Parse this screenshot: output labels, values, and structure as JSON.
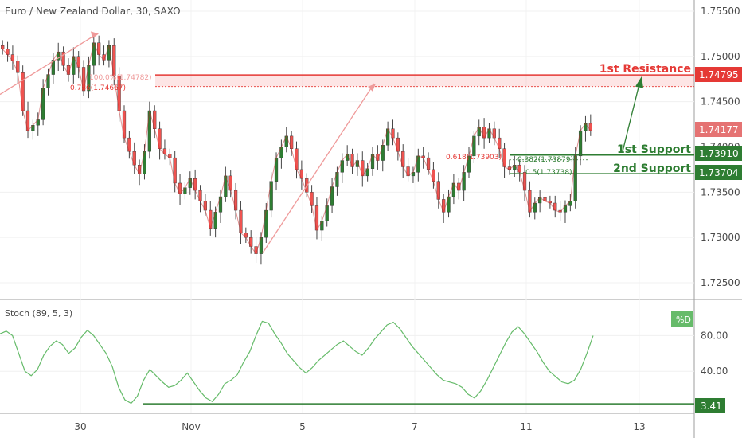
{
  "header": {
    "title": "Euro / New Zealand Dollar, 30, SAXO"
  },
  "colors": {
    "up": "#26a69a",
    "up_dark": "#2e7d32",
    "down": "#ef5350",
    "candle_wick": "#444444",
    "resistance": "#e53935",
    "support": "#2e7d32",
    "stoch": "#66bb6a",
    "arrow": "#ef9a9a",
    "current_tag": "#e57373"
  },
  "chart_data": [
    {
      "type": "candlestick",
      "title": "Euro / New Zealand Dollar, 30, SAXO",
      "x_ticks": [
        "30",
        "Nov",
        "5",
        "7",
        "11",
        "13"
      ],
      "y_ticks": [
        "1.75500",
        "1.75000",
        "1.74500",
        "1.74000",
        "1.73500",
        "1.73000",
        "1.72500"
      ],
      "ylim": [
        1.7225,
        1.7565
      ],
      "close_path": [
        1.7508,
        1.7502,
        1.7495,
        1.7482,
        1.744,
        1.7418,
        1.7424,
        1.743,
        1.7465,
        1.748,
        1.7496,
        1.7505,
        1.749,
        1.748,
        1.75,
        1.7488,
        1.7462,
        1.749,
        1.7515,
        1.7502,
        1.7496,
        1.7512,
        1.7478,
        1.744,
        1.741,
        1.7395,
        1.738,
        1.737,
        1.7395,
        1.744,
        1.742,
        1.7398,
        1.7392,
        1.7388,
        1.736,
        1.7348,
        1.7355,
        1.7365,
        1.7352,
        1.734,
        1.733,
        1.731,
        1.7328,
        1.7345,
        1.7368,
        1.7352,
        1.733,
        1.7305,
        1.73,
        1.729,
        1.7282,
        1.73,
        1.733,
        1.7362,
        1.7388,
        1.74,
        1.7412,
        1.7398,
        1.7375,
        1.7365,
        1.735,
        1.7335,
        1.7308,
        1.7318,
        1.7335,
        1.7356,
        1.7372,
        1.7385,
        1.7392,
        1.7378,
        1.7385,
        1.7368,
        1.7376,
        1.7392,
        1.7385,
        1.7402,
        1.742,
        1.741,
        1.7395,
        1.7378,
        1.7368,
        1.7372,
        1.739,
        1.7388,
        1.7375,
        1.7362,
        1.7342,
        1.7328,
        1.7345,
        1.736,
        1.7352,
        1.7372,
        1.739,
        1.7412,
        1.7422,
        1.741,
        1.742,
        1.741,
        1.7398,
        1.7378,
        1.7375,
        1.738,
        1.7372,
        1.7352,
        1.7328,
        1.7338,
        1.7344,
        1.734,
        1.7338,
        1.733,
        1.7328,
        1.7335,
        1.734,
        1.739,
        1.7418,
        1.7426,
        1.7418
      ],
      "annotations": {
        "fib_top_label": "100.0%(1.74782)",
        "fib_786_label": "0.786(1.74667)",
        "fib_618_label": "0.618(1.73903)",
        "fib_382_label": "0.382(1.73879)",
        "fib_50_label": "0.5(1.73738)"
      }
    },
    {
      "type": "line",
      "name": "Stoch (89, 5, 3)",
      "y_ticks": [
        "80.00",
        "40.00"
      ],
      "ylim": [
        0,
        100
      ],
      "values": [
        82,
        85,
        80,
        60,
        40,
        35,
        42,
        58,
        68,
        74,
        70,
        60,
        66,
        78,
        86,
        80,
        70,
        60,
        45,
        22,
        8,
        4,
        12,
        30,
        42,
        35,
        28,
        22,
        24,
        30,
        38,
        28,
        18,
        10,
        6,
        14,
        26,
        30,
        36,
        50,
        62,
        80,
        96,
        94,
        82,
        72,
        60,
        52,
        44,
        38,
        44,
        52,
        58,
        64,
        70,
        74,
        68,
        62,
        58,
        66,
        76,
        84,
        92,
        95,
        88,
        78,
        68,
        60,
        52,
        44,
        36,
        30,
        28,
        26,
        22,
        14,
        10,
        18,
        30,
        44,
        58,
        72,
        84,
        90,
        82,
        72,
        62,
        50,
        40,
        34,
        28,
        26,
        30,
        42,
        60,
        80
      ]
    }
  ],
  "levels": {
    "resistance": {
      "label": "1st Resistance",
      "value": "1.74795",
      "price": 1.74795
    },
    "support1": {
      "label": "1st Support",
      "value": "1.73910",
      "price": 1.7391
    },
    "support2": {
      "label": "2nd Support",
      "value": "1.73704",
      "price": 1.73704
    },
    "current": {
      "value": "1.74177",
      "price": 1.74177
    }
  },
  "stoch_panel": {
    "title": "Stoch (89, 5, 3)",
    "legend_tag": "%D",
    "low_value": "3.41"
  }
}
